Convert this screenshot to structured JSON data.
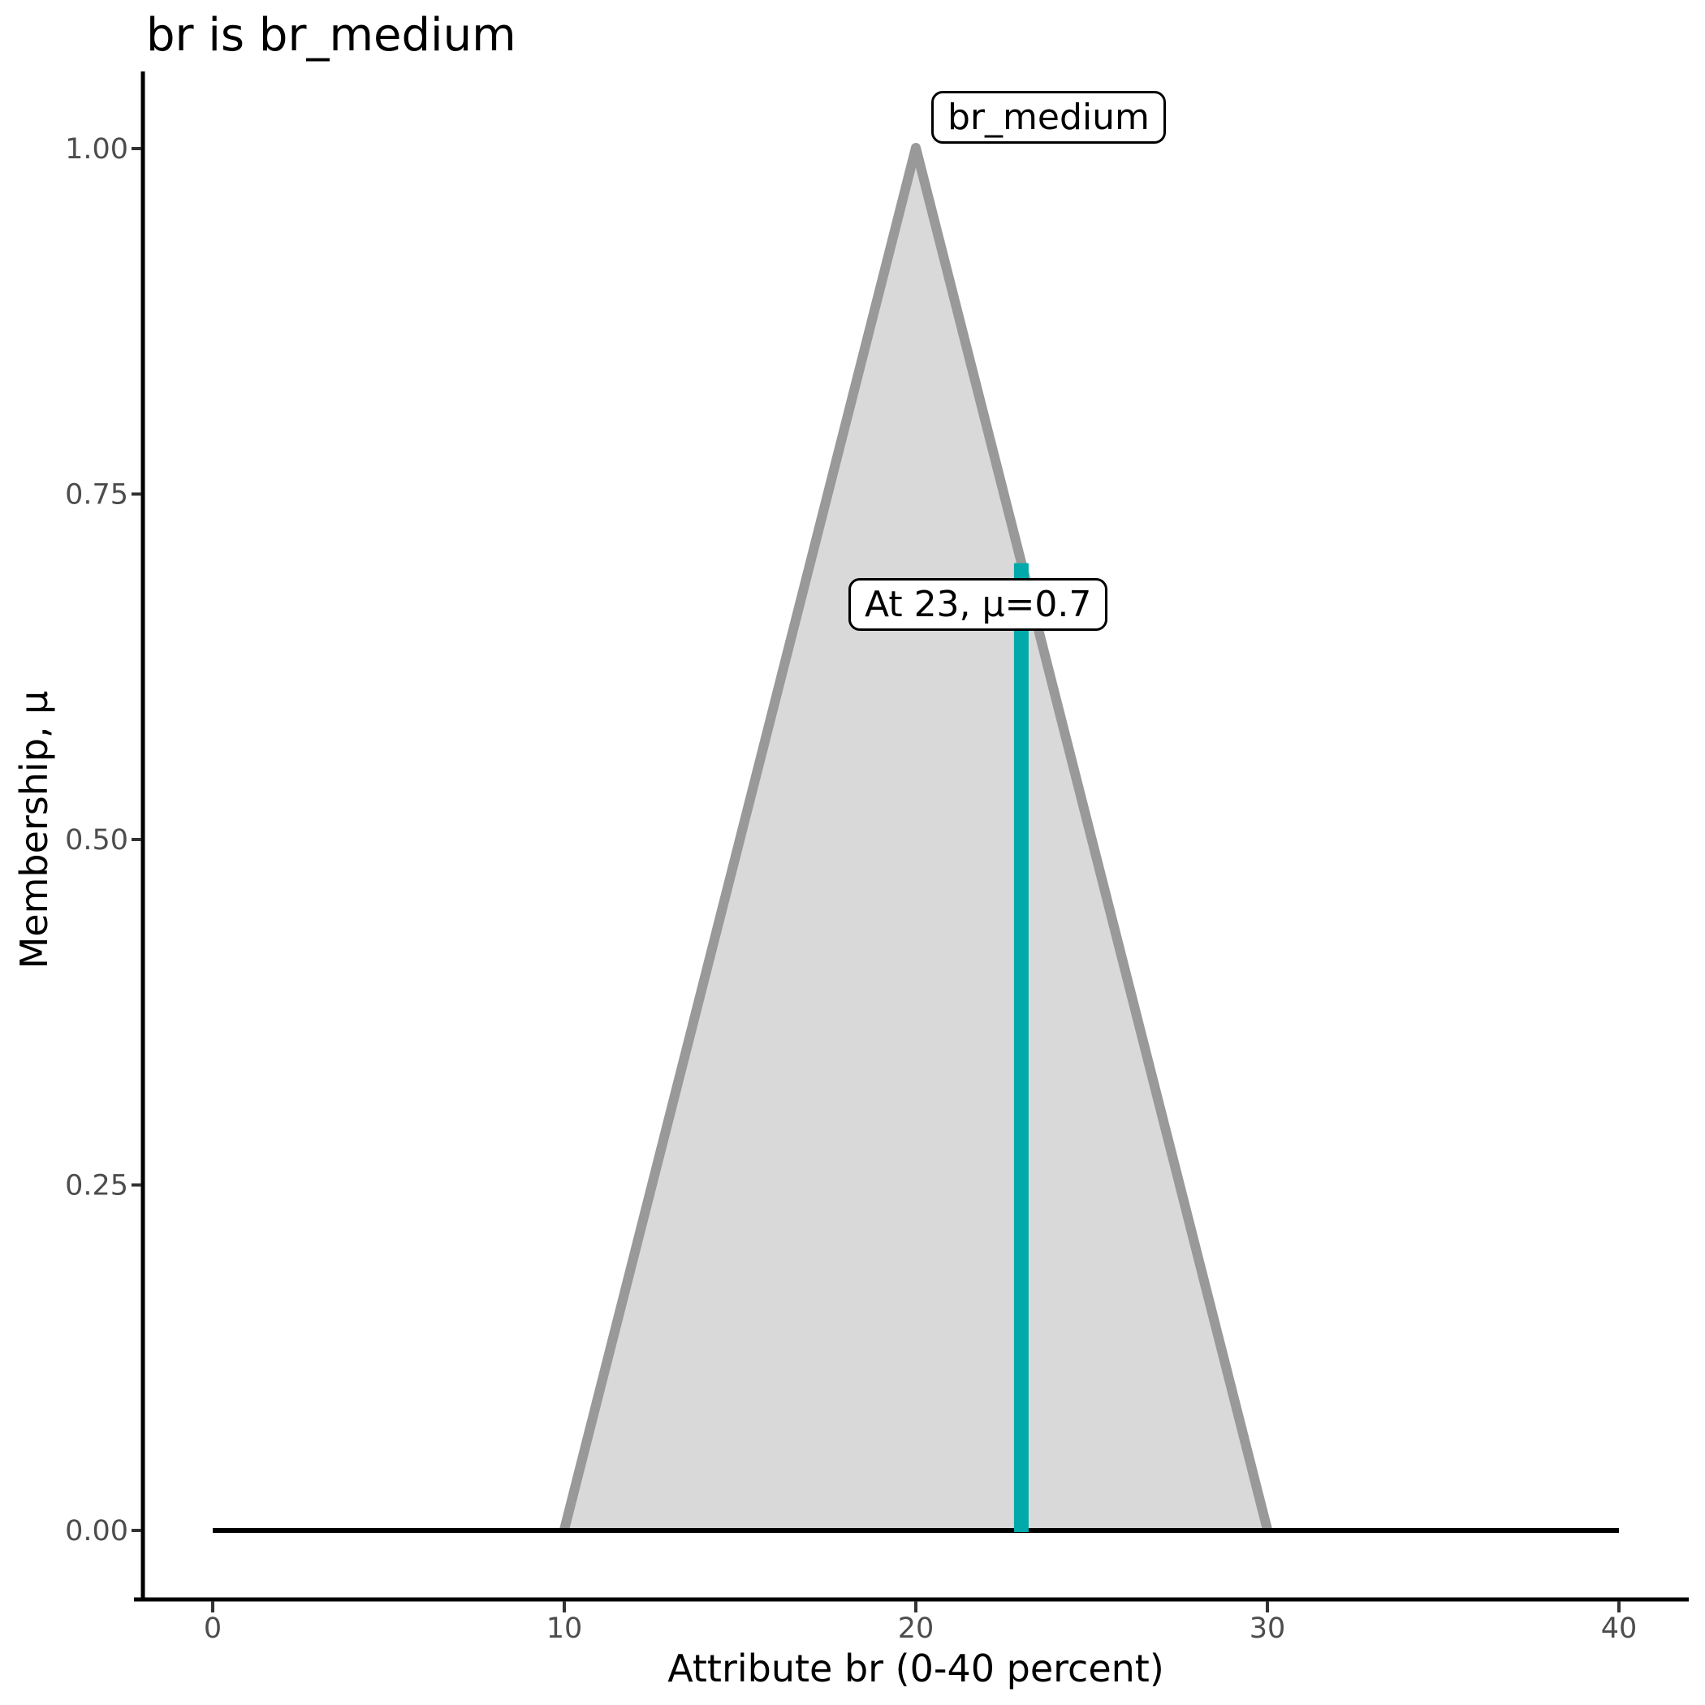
{
  "chart_data": {
    "type": "area",
    "title": "br is br_medium",
    "xlabel": "Attribute br (0-40 percent)",
    "ylabel": "Membership, μ",
    "xlim": [
      0,
      40
    ],
    "ylim": [
      0,
      1
    ],
    "grid": "off",
    "legend": "none",
    "x_ticks": {
      "values": [
        0,
        10,
        20,
        30,
        40
      ],
      "labels": [
        "0",
        "10",
        "20",
        "30",
        "40"
      ]
    },
    "y_ticks": {
      "values": [
        0,
        0.25,
        0.5,
        0.75,
        1
      ],
      "labels": [
        "0.00",
        "0.25",
        "0.50",
        "0.75",
        "1.00"
      ]
    },
    "membership_function": {
      "name": "br_medium",
      "shape": "triangle",
      "vertices": [
        [
          10,
          0
        ],
        [
          20,
          1
        ],
        [
          30,
          0
        ]
      ],
      "support_line": {
        "x0": 0,
        "x1": 40,
        "y": 0,
        "color": "#000000"
      },
      "fill": "#D9D9D9",
      "stroke": "#999999"
    },
    "input_marker": {
      "x": 23,
      "mu": 0.7,
      "color": "#00A9AA"
    },
    "annotations": [
      {
        "text": "br_medium"
      },
      {
        "text": "At 23, μ=0.7"
      }
    ],
    "colors": {
      "tick_label": "#4D4D4D",
      "tick_mark": "#333333",
      "axis": "#000000",
      "text": "#000000"
    }
  }
}
